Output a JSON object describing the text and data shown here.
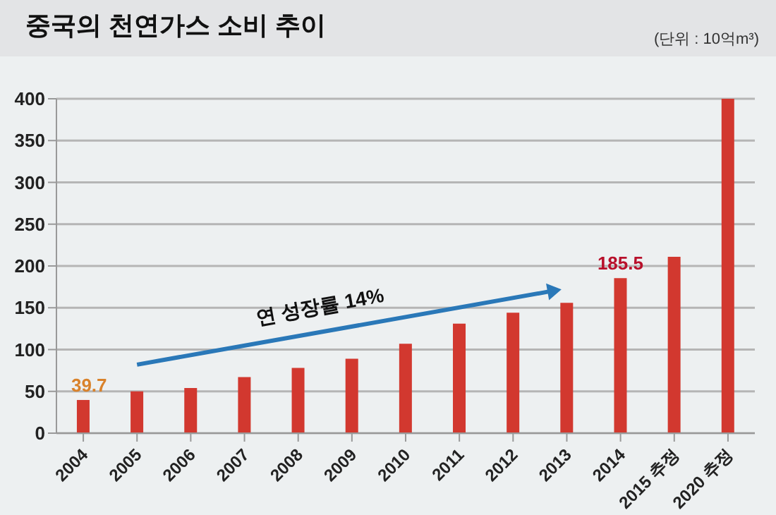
{
  "chart_data": {
    "type": "bar",
    "title": "중국의 천연가스 소비 추이",
    "subtitle": "(단위 : 10억m³)",
    "categories": [
      "2004",
      "2005",
      "2006",
      "2007",
      "2008",
      "2009",
      "2010",
      "2011",
      "2012",
      "2013",
      "2014",
      "2015 추정",
      "2020 추정"
    ],
    "values": [
      39.7,
      50,
      54,
      67,
      78,
      89,
      107,
      131,
      144,
      156,
      185.5,
      211,
      400
    ],
    "value_labels": [
      "39.7",
      null,
      null,
      null,
      null,
      null,
      null,
      null,
      null,
      null,
      "185.5",
      null,
      null
    ],
    "color": "#d2382f",
    "ylim": [
      0,
      400
    ],
    "yticks": [
      0,
      50,
      100,
      150,
      200,
      250,
      300,
      350,
      400
    ],
    "grid": "y",
    "annotations": [
      "연 성장률 14%"
    ]
  }
}
